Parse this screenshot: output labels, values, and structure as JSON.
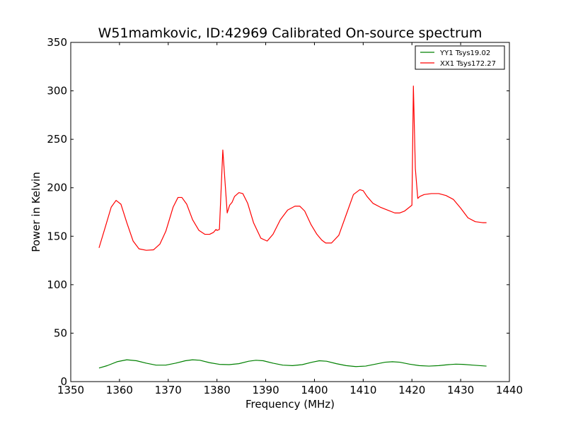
{
  "chart_data": {
    "type": "line",
    "title": "W51mamkovic, ID:42969 Calibrated On-source spectrum",
    "xlabel": "Frequency (MHz)",
    "ylabel": "Power in Kelvin",
    "xlim": [
      1350,
      1440
    ],
    "ylim": [
      0,
      350
    ],
    "xticks": [
      1350,
      1360,
      1370,
      1380,
      1390,
      1400,
      1410,
      1420,
      1430,
      1440
    ],
    "yticks": [
      0,
      50,
      100,
      150,
      200,
      250,
      300,
      350
    ],
    "grid": false,
    "legend_position": "top-right",
    "series": [
      {
        "name": "YY1 Tsys19.02",
        "color": "#008000",
        "x": [
          1355.8,
          1357.5,
          1359.5,
          1361.5,
          1363.5,
          1365.5,
          1367.5,
          1369.5,
          1371.5,
          1373.5,
          1375.0,
          1376.5,
          1378.5,
          1380.5,
          1382.5,
          1384.5,
          1386.5,
          1388.0,
          1389.5,
          1391.5,
          1393.5,
          1395.5,
          1397.5,
          1399.5,
          1401.0,
          1402.5,
          1404.5,
          1406.5,
          1408.5,
          1410.5,
          1412.5,
          1414.5,
          1416.0,
          1417.5,
          1419.5,
          1421.5,
          1423.5,
          1425.5,
          1427.5,
          1429.0,
          1430.5,
          1432.5,
          1435.3
        ],
        "values": [
          14,
          16.5,
          20.5,
          22.5,
          21.5,
          19,
          17,
          17,
          19,
          21.5,
          22.5,
          22,
          19.5,
          17.8,
          17.5,
          18.5,
          21,
          22,
          21.5,
          19,
          17,
          16.5,
          17.5,
          20,
          21.5,
          21,
          18.5,
          16.5,
          15.5,
          16,
          18,
          20,
          20.5,
          20,
          18,
          16.5,
          16,
          16.5,
          17.5,
          18,
          17.8,
          17,
          16
        ]
      },
      {
        "name": "XX1 Tsys172.27",
        "color": "#ff0000",
        "x": [
          1355.8,
          1357.0,
          1358.3,
          1359.3,
          1360.3,
          1361.5,
          1362.8,
          1364.0,
          1365.5,
          1367.0,
          1368.3,
          1369.5,
          1371.0,
          1372.0,
          1372.8,
          1373.8,
          1375.0,
          1376.3,
          1377.5,
          1378.5,
          1379.3,
          1379.8,
          1380.0,
          1380.5,
          1381.2,
          1381.6,
          1382.1,
          1382.6,
          1383.1,
          1383.6,
          1384.5,
          1385.3,
          1386.3,
          1387.5,
          1389.0,
          1390.3,
          1391.5,
          1393.0,
          1394.5,
          1396.0,
          1397.0,
          1398.0,
          1399.3,
          1400.5,
          1401.5,
          1402.3,
          1403.5,
          1405.0,
          1406.5,
          1408.0,
          1409.3,
          1410.0,
          1410.8,
          1412.0,
          1413.5,
          1415.0,
          1416.5,
          1417.5,
          1418.5,
          1419.5,
          1420.0,
          1420.3,
          1420.7,
          1421.2,
          1421.6,
          1422.5,
          1424.0,
          1425.5,
          1427.0,
          1428.5,
          1430.0,
          1431.5,
          1433.0,
          1434.5,
          1435.3
        ],
        "values": [
          138,
          158,
          180,
          187,
          183,
          164,
          145,
          137,
          135.5,
          136,
          142,
          155,
          180,
          190,
          190,
          183,
          167,
          156,
          152,
          152,
          154,
          157,
          156,
          157,
          239,
          210,
          174,
          182,
          185,
          191,
          195,
          194,
          184,
          164,
          148,
          145,
          152,
          167,
          177,
          181,
          181,
          176,
          162,
          152,
          146,
          143,
          143,
          151,
          172,
          193,
          198,
          197,
          191,
          184,
          180,
          177,
          174,
          174,
          176,
          180,
          182,
          305,
          220,
          189,
          191,
          193,
          194,
          194,
          192,
          188,
          179,
          169,
          165,
          164,
          164
        ]
      }
    ]
  }
}
